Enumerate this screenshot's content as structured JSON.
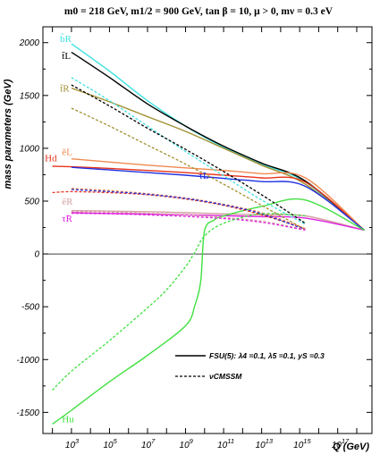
{
  "chart_data": {
    "type": "line",
    "title": "m0 = 218 GeV, m1/2 = 900 GeV, tan β = 10,  μ > 0, mν = 0.3 eV",
    "xlabel": "Q (GeV)",
    "ylabel": "mass parameters (GeV)",
    "x_scale": "log10",
    "xlim_log10": [
      1.5,
      18.8
    ],
    "ylim": [
      -1700,
      2150
    ],
    "y_ticks": [
      "2000",
      "1500",
      "1000",
      "500",
      "0",
      "-500",
      "-1000",
      "-1500"
    ],
    "x_ticks": [
      "10^3",
      "10^5",
      "10^7",
      "10^9",
      "10^11",
      "10^13",
      "10^15",
      "10^17"
    ],
    "zero_line": true,
    "legend": {
      "placement": "bottom-right",
      "entries": [
        {
          "style": "solid",
          "label": "FSU(5): λ4 =0.1, λ5 =0.1, yS =0.3"
        },
        {
          "style": "dashed",
          "label": "νCMSSM"
        }
      ]
    },
    "series": [
      {
        "name": "b̃R",
        "color": "#40e0e0",
        "style": "solid",
        "log10Q": [
          3,
          5,
          7,
          9,
          11,
          13,
          15.3,
          18.4
        ],
        "values": [
          1990,
          1730,
          1450,
          1210,
          1010,
          850,
          680,
          225
        ]
      },
      {
        "name": "t̃L",
        "color": "#000000",
        "style": "solid",
        "log10Q": [
          3,
          5,
          7,
          9,
          11,
          13,
          15.3,
          18.4
        ],
        "values": [
          1910,
          1670,
          1420,
          1210,
          1020,
          860,
          690,
          225
        ]
      },
      {
        "name": "t̃R",
        "color": "#a08f30",
        "style": "solid",
        "log10Q": [
          3,
          5,
          7,
          9,
          11,
          13,
          15.3,
          18.4
        ],
        "values": [
          1570,
          1440,
          1300,
          1160,
          1000,
          840,
          660,
          225
        ]
      },
      {
        "name": "Hd",
        "color": "#e8331a",
        "style": "solid",
        "log10Q": [
          2,
          3,
          5,
          7,
          9,
          11,
          13,
          15.3,
          18.4
        ],
        "values": [
          830,
          825,
          810,
          790,
          770,
          745,
          720,
          680,
          225
        ]
      },
      {
        "name": "ẽL",
        "color": "#f08a50",
        "style": "solid",
        "log10Q": [
          3,
          5,
          7,
          9,
          11,
          13,
          15.3,
          18.4
        ],
        "values": [
          900,
          870,
          840,
          815,
          790,
          760,
          720,
          225
        ]
      },
      {
        "name": "τ̃L",
        "color": "#2030e0",
        "style": "solid",
        "log10Q": [
          3,
          5,
          7,
          9,
          11,
          13,
          15.3,
          18.4
        ],
        "values": [
          820,
          795,
          770,
          745,
          715,
          685,
          640,
          225
        ]
      },
      {
        "name": "ẽR",
        "color": "#d4a0a0",
        "style": "solid",
        "log10Q": [
          3,
          5,
          7,
          9,
          11,
          13,
          15.3,
          18.4
        ],
        "values": [
          410,
          405,
          400,
          390,
          380,
          370,
          360,
          225
        ]
      },
      {
        "name": "τ̃R",
        "color": "#e020e0",
        "style": "solid",
        "log10Q": [
          3,
          5,
          7,
          9,
          11,
          13,
          15.3,
          18.4
        ],
        "values": [
          390,
          383,
          377,
          370,
          362,
          353,
          340,
          225
        ]
      },
      {
        "name": "Hu",
        "color": "#40e040",
        "style": "solid",
        "log10Q": [
          2,
          3,
          5,
          7,
          9,
          9.5,
          9.8,
          10,
          10.5,
          11,
          13,
          15.3,
          18.4
        ],
        "values": [
          -1610,
          -1480,
          -1210,
          -960,
          -680,
          -480,
          -250,
          220,
          320,
          360,
          450,
          510,
          225
        ]
      },
      {
        "name": "b̃R νCMSSM",
        "color": "#40e0e0",
        "style": "dashed",
        "log10Q": [
          3,
          5,
          7,
          9,
          11,
          13,
          15.3
        ],
        "values": [
          1670,
          1450,
          1210,
          970,
          740,
          510,
          280
        ]
      },
      {
        "name": "t̃L νCMSSM",
        "color": "#000000",
        "style": "dashed",
        "log10Q": [
          3,
          5,
          7,
          9,
          11,
          13,
          15.3
        ],
        "values": [
          1600,
          1400,
          1190,
          990,
          780,
          560,
          290
        ]
      },
      {
        "name": "t̃R νCMSSM",
        "color": "#a08f30",
        "style": "dashed",
        "log10Q": [
          3,
          5,
          7,
          9,
          11,
          13,
          15.3
        ],
        "values": [
          1380,
          1210,
          1030,
          850,
          660,
          460,
          230
        ]
      },
      {
        "name": "Hd νCMSSM",
        "color": "#e8331a",
        "style": "dashed",
        "log10Q": [
          2,
          3,
          5,
          7,
          9,
          11,
          13,
          15.3
        ],
        "values": [
          580,
          590,
          580,
          560,
          520,
          460,
          370,
          240
        ]
      },
      {
        "name": "ẽL νCMSSM",
        "color": "#f08a50",
        "style": "dashed",
        "log10Q": [
          3,
          5,
          7,
          9,
          11,
          13,
          15.3
        ],
        "values": [
          620,
          600,
          570,
          530,
          470,
          390,
          240
        ]
      },
      {
        "name": "τ̃L νCMSSM",
        "color": "#2030e0",
        "style": "dashed",
        "log10Q": [
          3,
          5,
          7,
          9,
          11,
          13,
          15.3
        ],
        "values": [
          610,
          590,
          565,
          525,
          465,
          380,
          230
        ]
      },
      {
        "name": "ẽR νCMSSM",
        "color": "#d4a0a0",
        "style": "dashed",
        "log10Q": [
          3,
          5,
          7,
          9,
          11,
          13,
          15.3
        ],
        "values": [
          400,
          395,
          385,
          370,
          345,
          310,
          230
        ]
      },
      {
        "name": "τ̃R νCMSSM",
        "color": "#e020e0",
        "style": "dashed",
        "log10Q": [
          3,
          5,
          7,
          9,
          11,
          13,
          15.3
        ],
        "values": [
          385,
          380,
          370,
          355,
          335,
          300,
          225
        ]
      },
      {
        "name": "Hu νCMSSM",
        "color": "#40e040",
        "style": "dashed",
        "log10Q": [
          2,
          3,
          5,
          7,
          8,
          9,
          9.5,
          10,
          11,
          13,
          15.3
        ],
        "values": [
          -1290,
          -1110,
          -820,
          -510,
          -340,
          -120,
          20,
          170,
          290,
          380,
          360
        ]
      }
    ],
    "curve_labels": [
      {
        "text": "b̃R",
        "color": "#40e0e0",
        "log10Q": 2.4,
        "value": 2005
      },
      {
        "text": "t̃L",
        "color": "#000000",
        "log10Q": 2.5,
        "value": 1845
      },
      {
        "text": "t̃R",
        "color": "#a08f30",
        "log10Q": 2.4,
        "value": 1535
      },
      {
        "text": "Hd",
        "color": "#e8331a",
        "log10Q": 1.6,
        "value": 875
      },
      {
        "text": "ẽL",
        "color": "#f08a50",
        "log10Q": 2.5,
        "value": 935
      },
      {
        "text": "τ̃L",
        "color": "#2030e0",
        "log10Q": 9.7,
        "value": 710
      },
      {
        "text": "ẽR",
        "color": "#d4a0a0",
        "log10Q": 2.5,
        "value": 465
      },
      {
        "text": "τ̃R",
        "color": "#e020e0",
        "log10Q": 2.5,
        "value": 305
      },
      {
        "text": "Hu",
        "color": "#40e040",
        "log10Q": 2.5,
        "value": -1595
      }
    ]
  }
}
